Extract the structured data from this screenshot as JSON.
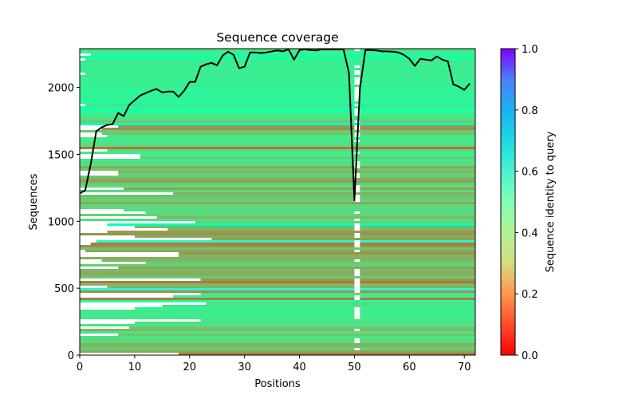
{
  "chart_data": {
    "type": "heatmap",
    "title": "Sequence coverage",
    "xlabel": "Positions",
    "ylabel": "Sequences",
    "xlim": [
      0,
      72
    ],
    "ylim": [
      0,
      2290
    ],
    "x_ticks": [
      0,
      10,
      20,
      30,
      40,
      50,
      60,
      70
    ],
    "y_ticks": [
      0,
      500,
      1000,
      1500,
      2000
    ],
    "grid": false,
    "heatmap": {
      "description": "Rows = aligned sequences sorted by identity; each cell colored by sequence identity to query (rainbow_r colormap); white = gap/no coverage",
      "n_sequences": 2290,
      "n_positions": 72,
      "gap_column": 50,
      "identity_bands": [
        {
          "from_seq": 0,
          "to_seq": 30,
          "identity": 0.22
        },
        {
          "from_seq": 30,
          "to_seq": 200,
          "identity": 0.3
        },
        {
          "from_seq": 200,
          "to_seq": 460,
          "identity": 0.38
        },
        {
          "from_seq": 460,
          "to_seq": 1000,
          "identity": 0.25
        },
        {
          "from_seq": 1000,
          "to_seq": 1400,
          "identity": 0.28
        },
        {
          "from_seq": 1400,
          "to_seq": 1800,
          "identity": 0.33
        },
        {
          "from_seq": 1800,
          "to_seq": 2290,
          "identity": 0.4
        }
      ]
    },
    "series": [
      {
        "name": "Coverage",
        "type": "line",
        "color": "#000000",
        "x": [
          0,
          1,
          2,
          3,
          4,
          5,
          6,
          7,
          8,
          9,
          10,
          11,
          12,
          13,
          14,
          15,
          16,
          17,
          18,
          19,
          20,
          21,
          22,
          23,
          24,
          25,
          26,
          27,
          28,
          29,
          30,
          31,
          32,
          33,
          34,
          35,
          36,
          37,
          38,
          39,
          40,
          41,
          42,
          43,
          44,
          45,
          46,
          47,
          48,
          49,
          50,
          51,
          52,
          53,
          54,
          55,
          56,
          57,
          58,
          59,
          60,
          61,
          62,
          63,
          64,
          65,
          66,
          67,
          68,
          69,
          70,
          71
        ],
        "values": [
          1208,
          1232,
          1428,
          1673,
          1702,
          1720,
          1726,
          1810,
          1786,
          1869,
          1905,
          1940,
          1958,
          1976,
          1988,
          1964,
          1970,
          1970,
          1929,
          1976,
          2042,
          2042,
          2155,
          2173,
          2184,
          2166,
          2238,
          2268,
          2244,
          2143,
          2155,
          2262,
          2262,
          2258,
          2262,
          2270,
          2276,
          2270,
          2286,
          2208,
          2280,
          2286,
          2280,
          2276,
          2286,
          2286,
          2286,
          2286,
          2286,
          2107,
          1155,
          1994,
          2280,
          2280,
          2276,
          2270,
          2270,
          2268,
          2262,
          2244,
          2214,
          2161,
          2214,
          2208,
          2202,
          2232,
          2208,
          2196,
          2024,
          2006,
          1982,
          2030
        ]
      }
    ],
    "colorbar": {
      "label": "Sequence identity to query",
      "colormap": "rainbow_r",
      "range": [
        0.0,
        1.0
      ],
      "ticks": [
        "0.0",
        "0.2",
        "0.4",
        "0.6",
        "0.8",
        "1.0"
      ]
    }
  }
}
